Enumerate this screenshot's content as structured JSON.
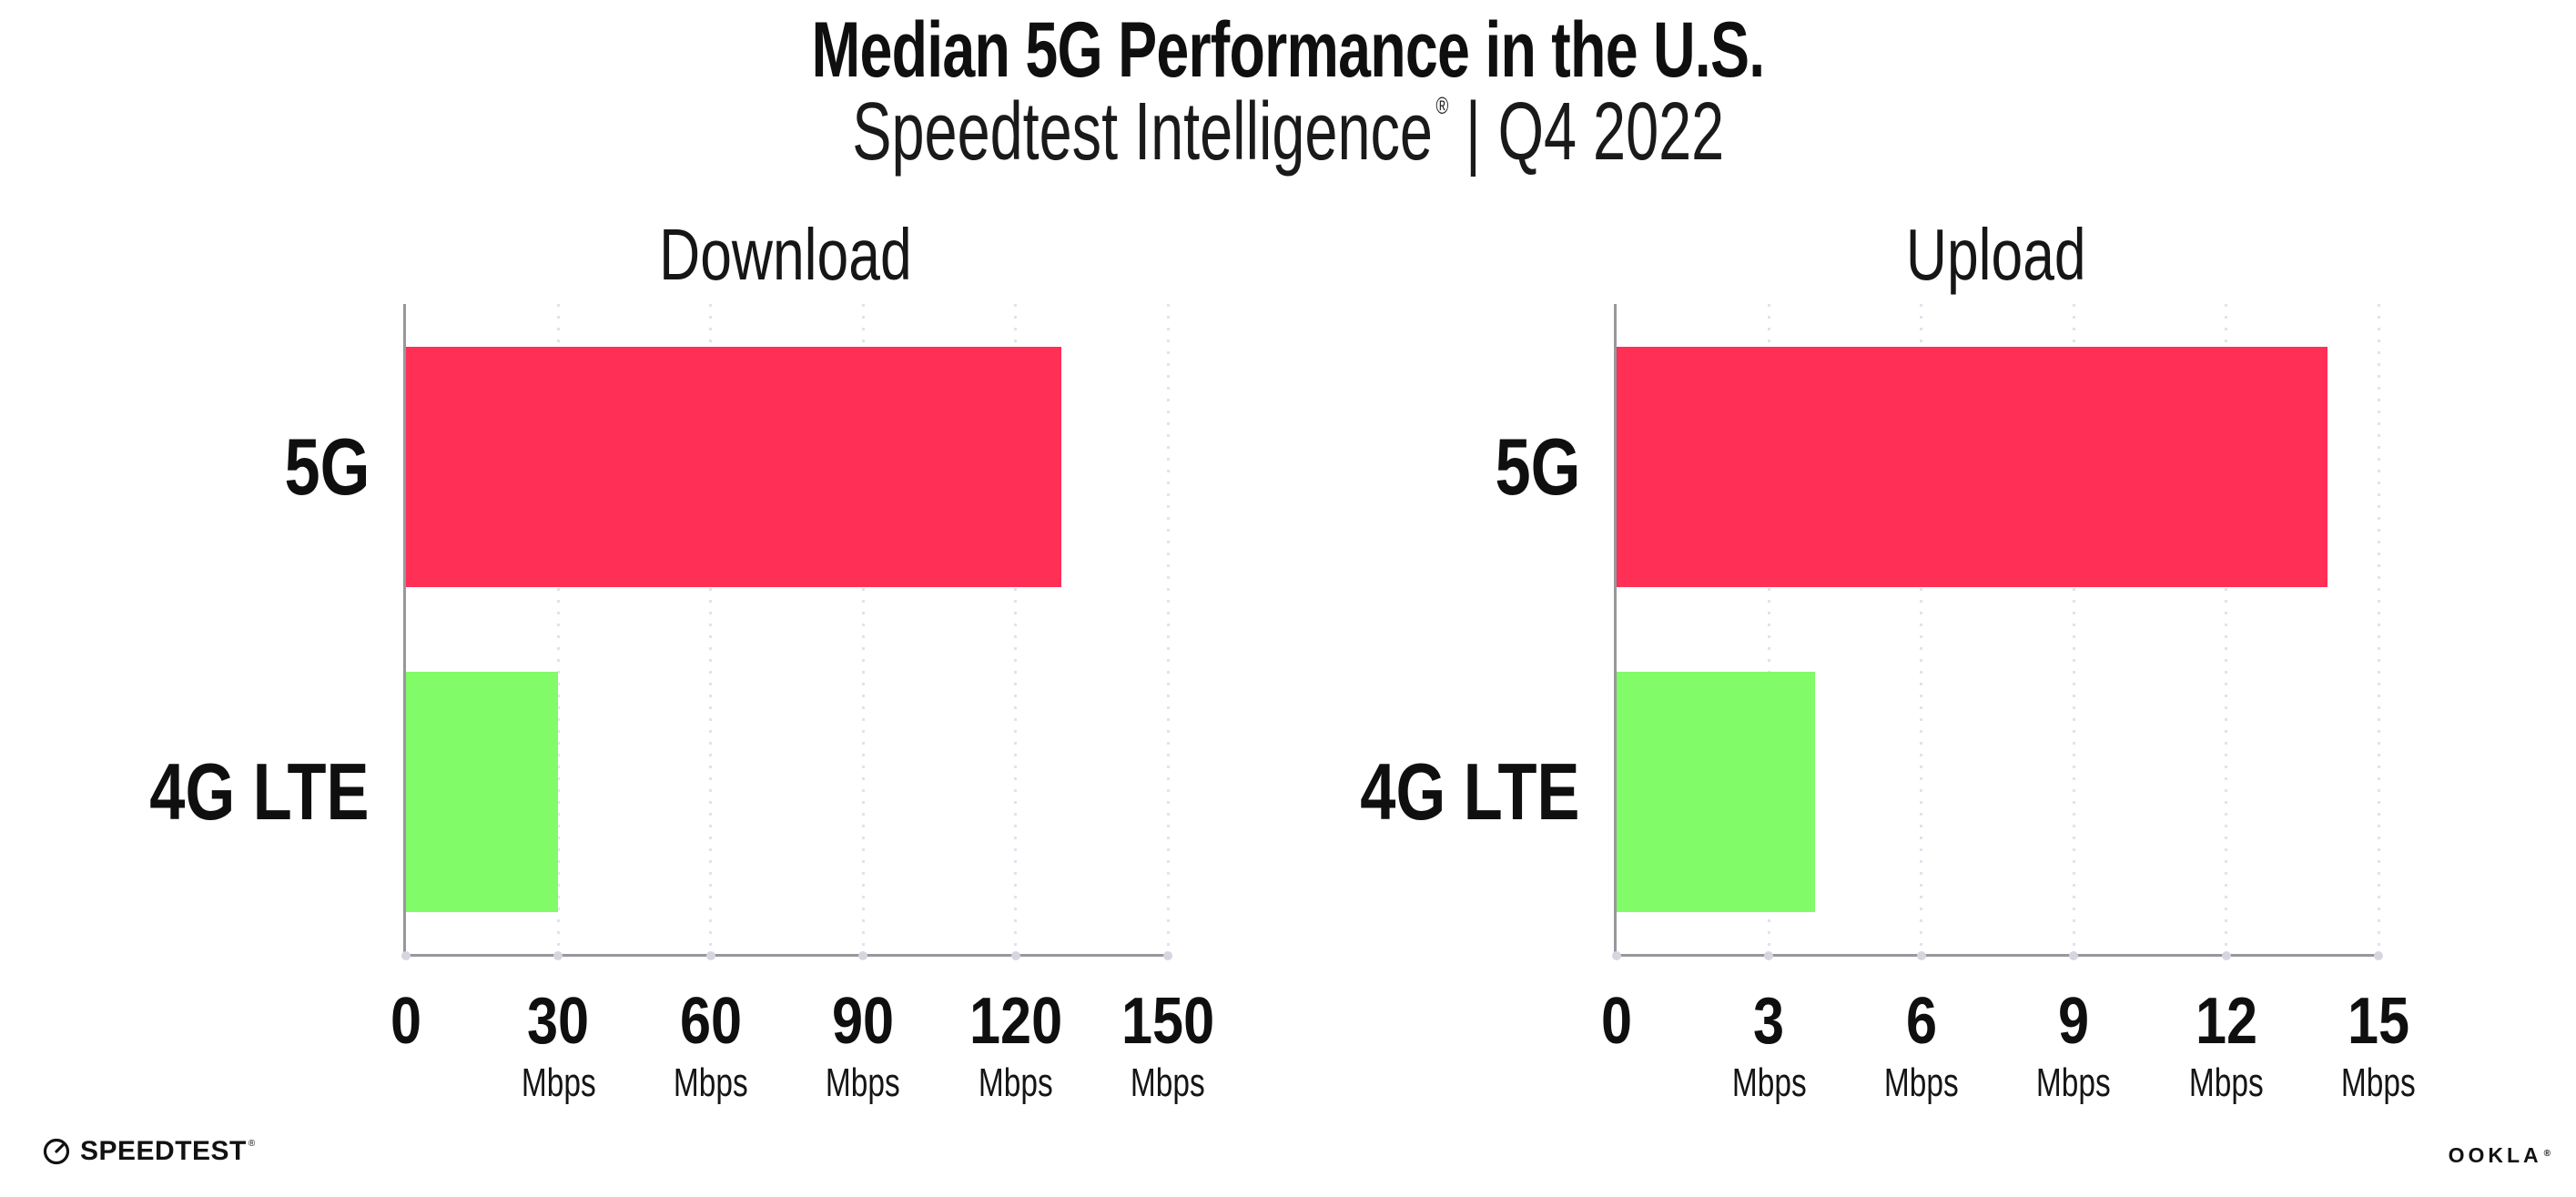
{
  "header": {
    "title": "Median 5G Performance in the U.S.",
    "subtitle_brand": "Speedtest Intelligence",
    "subtitle_reg": "®",
    "subtitle_sep": "|",
    "subtitle_period": "Q4 2022"
  },
  "chart_data": [
    {
      "type": "bar",
      "orientation": "horizontal",
      "title": "Download",
      "categories": [
        "5G",
        "4G LTE"
      ],
      "values": [
        129,
        30
      ],
      "unit": "Mbps",
      "xlim": [
        0,
        150
      ],
      "xticks": [
        0,
        30,
        60,
        90,
        120,
        150
      ],
      "bar_colors": [
        "#ff2f56",
        "#81fb68"
      ],
      "grid": "dotted-vertical",
      "legend": "none"
    },
    {
      "type": "bar",
      "orientation": "horizontal",
      "title": "Upload",
      "categories": [
        "5G",
        "4G LTE"
      ],
      "values": [
        14,
        3.9
      ],
      "unit": "Mbps",
      "xlim": [
        0,
        15
      ],
      "xticks": [
        0,
        3,
        6,
        9,
        12,
        15
      ],
      "bar_colors": [
        "#ff2f56",
        "#81fb68"
      ],
      "grid": "dotted-vertical",
      "legend": "none"
    }
  ],
  "styles": {
    "bar_5g_color": "#ff2f56",
    "bar_4g_color": "#81fb68",
    "axis_color": "#97979c",
    "grid_color": "#e2e2ec",
    "tick_dot_color": "#d6d6e0",
    "text_color": "#0f0f10"
  },
  "footer": {
    "speedtest_label": "SPEEDTEST",
    "speedtest_mark": "®",
    "ookla_label": "OOKLA",
    "ookla_mark": "®"
  }
}
